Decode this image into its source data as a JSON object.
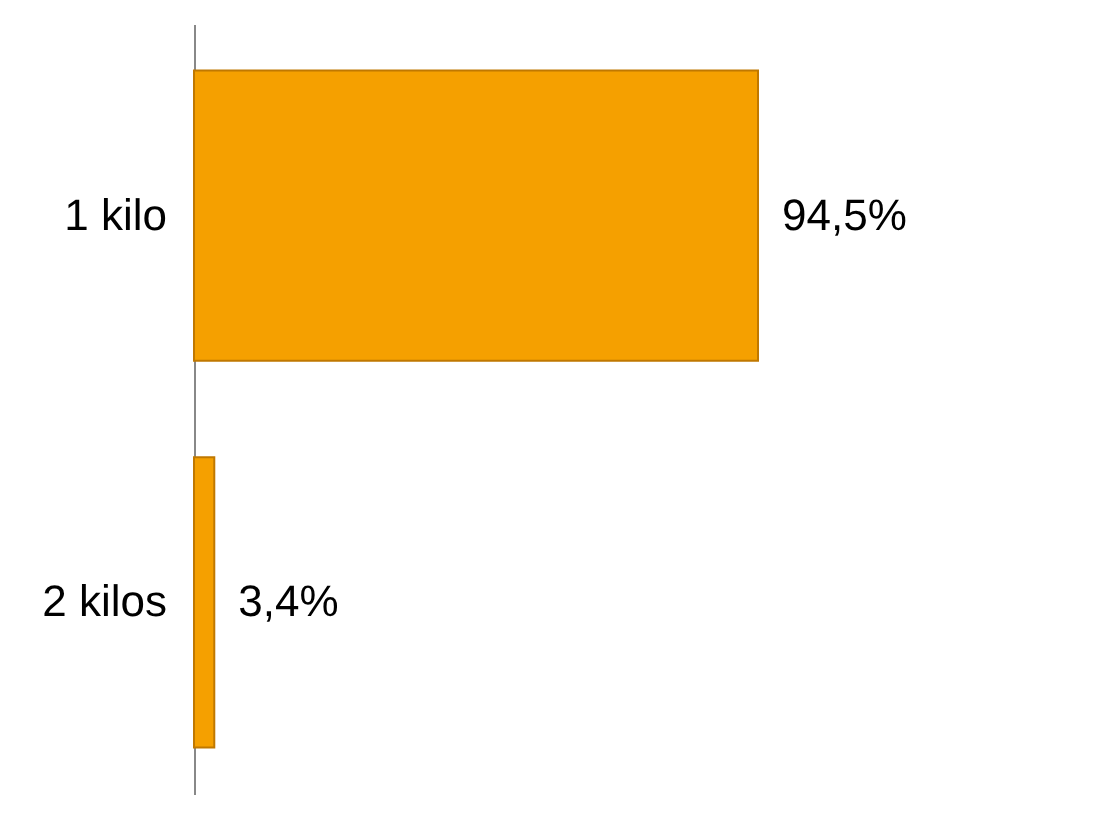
{
  "chart_data": {
    "type": "bar",
    "orientation": "horizontal",
    "categories": [
      "1 kilo",
      "2 kilos"
    ],
    "values": [
      94.5,
      3.4
    ],
    "value_labels": [
      "94,5%",
      "3,4%"
    ],
    "color": "#f5a000"
  }
}
